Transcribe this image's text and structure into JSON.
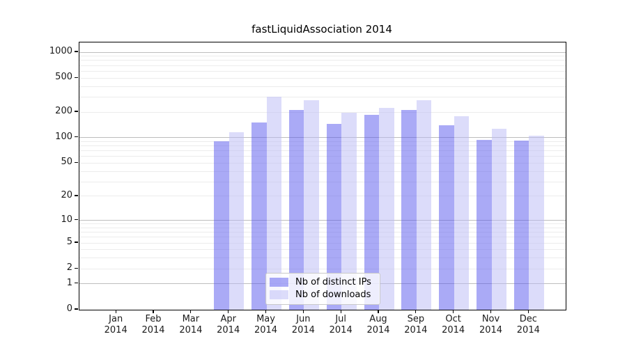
{
  "title": "fastLiquidAssociation 2014",
  "legend": {
    "items": [
      {
        "label": "Nb of distinct IPs",
        "series": "ips"
      },
      {
        "label": "Nb of downloads",
        "series": "downloads"
      }
    ]
  },
  "colors": {
    "ips_fill": "rgba(85,85,238,0.5)",
    "downloads_fill": "rgba(185,185,245,0.5)",
    "ips_displayed": "#aaaaf6",
    "downloads_displayed": "#dcdcfa",
    "major_grid": "#bdbdbd",
    "minor_grid": "#ececec",
    "axis": "#000000",
    "tick_text": "#1a1a1a",
    "legend_border": "#c9c9c9"
  },
  "chart_data": {
    "type": "bar",
    "title": "fastLiquidAssociation 2014",
    "categories": [
      "Jan 2014",
      "Feb 2014",
      "Mar 2014",
      "Apr 2014",
      "May 2014",
      "Jun 2014",
      "Jul 2014",
      "Aug 2014",
      "Sep 2014",
      "Oct 2014",
      "Nov 2014",
      "Dec 2014"
    ],
    "x_tick_months": [
      "Jan",
      "Feb",
      "Mar",
      "Apr",
      "May",
      "Jun",
      "Jul",
      "Aug",
      "Sep",
      "Oct",
      "Nov",
      "Dec"
    ],
    "x_tick_year": "2014",
    "series": [
      {
        "name": "Nb of distinct IPs",
        "values": [
          0,
          0,
          0,
          90,
          150,
          210,
          145,
          185,
          210,
          140,
          95,
          93
        ]
      },
      {
        "name": "Nb of downloads",
        "values": [
          0,
          0,
          0,
          115,
          300,
          275,
          195,
          225,
          275,
          180,
          128,
          105
        ]
      }
    ],
    "yscale": "log1p",
    "yticks": [
      0,
      1,
      2,
      5,
      10,
      20,
      50,
      100,
      200,
      500,
      1000
    ],
    "ylim": [
      0,
      1300
    ],
    "grid": true,
    "legend_position": "lower-center"
  }
}
